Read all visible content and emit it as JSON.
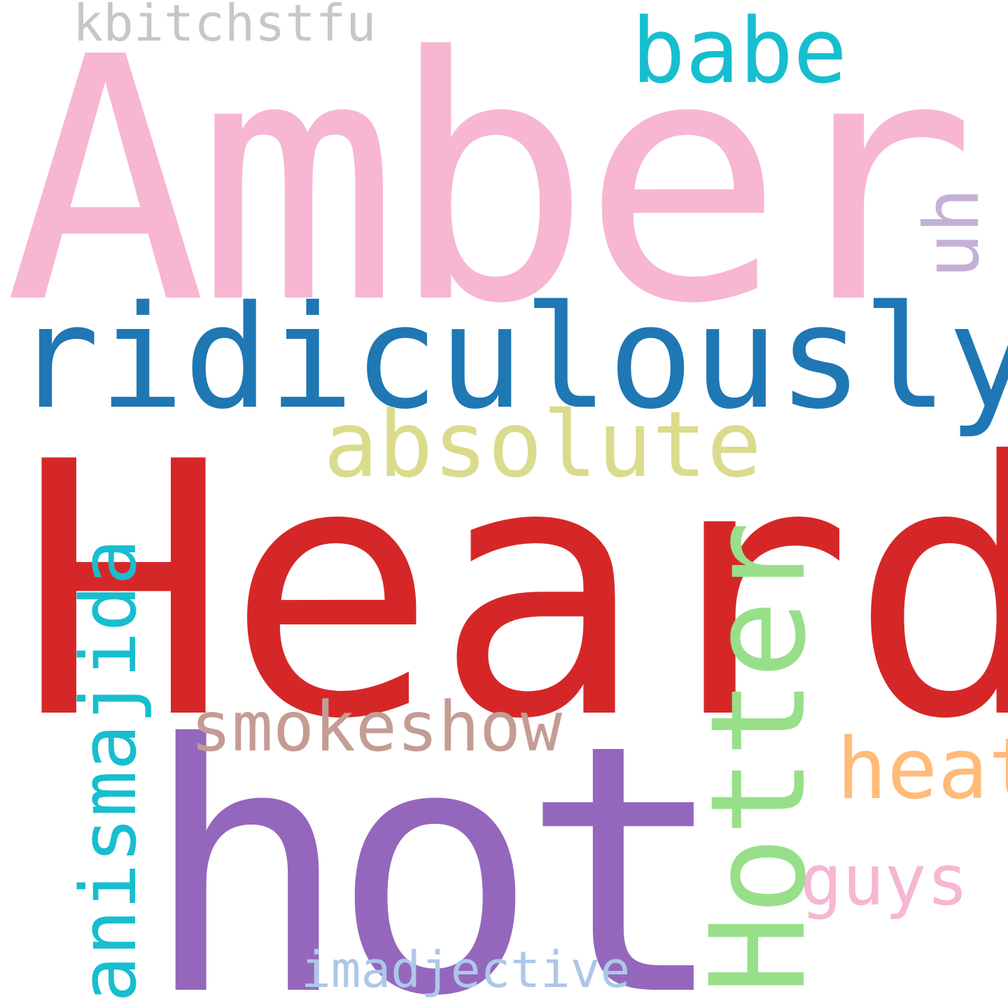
{
  "words": [
    {
      "id": "amber",
      "text": "Amber",
      "color": "#F7B6D2"
    },
    {
      "id": "heard",
      "text": "Heard",
      "color": "#D62728"
    },
    {
      "id": "hot",
      "text": "hot",
      "color": "#9467BD"
    },
    {
      "id": "ridiculously",
      "text": "ridiculously",
      "color": "#1F77B4"
    },
    {
      "id": "absolute",
      "text": "absolute",
      "color": "#DBDB8D"
    },
    {
      "id": "babe",
      "text": "babe",
      "color": "#17BECF"
    },
    {
      "id": "smokeshow",
      "text": "smokeshow",
      "color": "#C49C94"
    },
    {
      "id": "heat",
      "text": "heat",
      "color": "#FFBB78"
    },
    {
      "id": "guys",
      "text": "guys",
      "color": "#F7B6D2"
    },
    {
      "id": "imadjective",
      "text": "imadjective",
      "color": "#AEC7E8"
    },
    {
      "id": "kbitchstfu",
      "text": "kbitchstfu",
      "color": "#C7C7C7"
    },
    {
      "id": "hotter",
      "text": "Hotter",
      "color": "#98DF8A"
    },
    {
      "id": "anismajida",
      "text": "anismajida",
      "color": "#17BECF"
    },
    {
      "id": "uh",
      "text": "uh",
      "color": "#C5B0D5"
    }
  ]
}
